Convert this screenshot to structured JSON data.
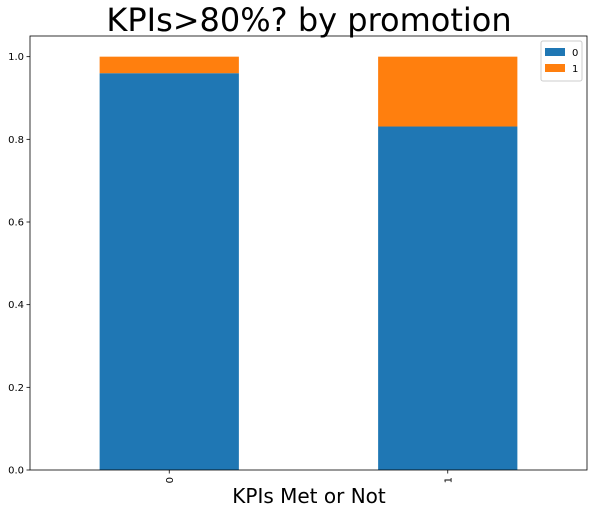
{
  "chart_data": {
    "type": "bar",
    "stacked": true,
    "title": "KPIs>80%? by promotion",
    "xlabel": "KPIs Met or Not",
    "ylabel": "",
    "categories": [
      "0",
      "1"
    ],
    "x_tick_rotation": 90,
    "series": [
      {
        "name": "0",
        "color": "#1f77b4",
        "values": [
          0.96,
          0.831
        ]
      },
      {
        "name": "1",
        "color": "#ff7f0e",
        "values": [
          0.04,
          0.169
        ]
      }
    ],
    "ylim": [
      0,
      1.05
    ],
    "yticks": [
      "0.0",
      "0.2",
      "0.4",
      "0.6",
      "0.8",
      "1.0"
    ],
    "grid": false,
    "legend_position": "top-right"
  }
}
